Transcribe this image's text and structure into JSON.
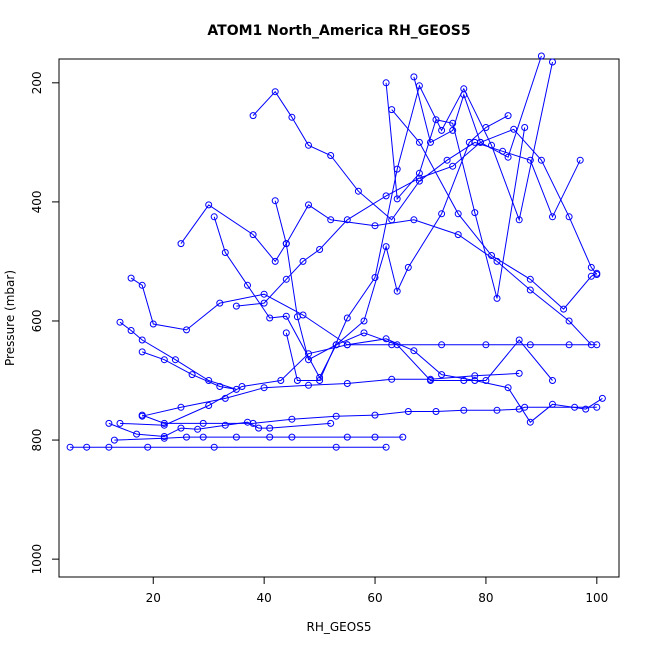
{
  "chart_data": {
    "type": "line",
    "title": "ATOM1 North_America RH_GEOS5",
    "xlabel": "RH_GEOS5",
    "ylabel": "Pressure (mbar)",
    "xlim": [
      3,
      104
    ],
    "ylim": [
      1030,
      160
    ],
    "y_inverted": true,
    "x_ticks": [
      "20",
      "40",
      "60",
      "80",
      "100"
    ],
    "y_ticks": [
      "200",
      "400",
      "600",
      "800",
      "1000"
    ],
    "grid": false,
    "legend": "none",
    "series_color": "#0000ff",
    "marker": "open-circle",
    "series": [
      {
        "x": [
          5,
          8,
          12,
          19,
          31,
          53,
          62
        ],
        "y": [
          812,
          812,
          812,
          812,
          812,
          812,
          812
        ]
      },
      {
        "x": [
          13,
          22,
          26,
          29,
          35,
          41,
          45,
          55,
          60,
          65
        ],
        "y": [
          800,
          797,
          795,
          795,
          795,
          795,
          795,
          795,
          795,
          795
        ]
      },
      {
        "x": [
          12,
          17,
          22,
          25,
          28,
          33,
          37,
          39,
          41,
          52
        ],
        "y": [
          772,
          790,
          794,
          780,
          782,
          775,
          770,
          780,
          780,
          772
        ]
      },
      {
        "x": [
          100,
          96,
          87,
          86,
          82,
          76,
          71,
          66,
          60,
          53,
          45,
          38,
          29,
          22,
          18
        ],
        "y": [
          745,
          745,
          745,
          748,
          750,
          750,
          752,
          752,
          758,
          760,
          765,
          772,
          772,
          772,
          758
        ]
      },
      {
        "x": [
          101,
          98,
          92,
          88,
          84,
          78,
          72,
          67,
          62,
          55,
          48,
          43,
          36,
          30,
          22,
          14
        ],
        "y": [
          730,
          748,
          740,
          770,
          712,
          700,
          690,
          650,
          630,
          640,
          655,
          700,
          710,
          742,
          775,
          772
        ]
      },
      {
        "x": [
          14,
          16,
          18,
          24,
          30,
          35,
          32,
          27,
          22,
          18
        ],
        "y": [
          602,
          616,
          632,
          665,
          700,
          715,
          710,
          690,
          665,
          652
        ]
      },
      {
        "x": [
          16,
          18,
          20,
          26,
          32,
          40,
          47,
          55,
          63,
          72,
          80,
          88,
          95,
          100
        ],
        "y": [
          528,
          540,
          605,
          615,
          570,
          555,
          590,
          640,
          640,
          640,
          640,
          640,
          640,
          640
        ]
      },
      {
        "x": [
          25,
          30,
          38,
          42,
          44,
          48,
          52,
          60,
          67,
          75,
          82,
          88,
          95,
          99
        ],
        "y": [
          470,
          405,
          455,
          500,
          470,
          405,
          430,
          440,
          430,
          455,
          500,
          548,
          600,
          640
        ]
      },
      {
        "x": [
          31,
          33,
          37,
          41,
          44,
          50,
          53,
          58,
          64,
          70,
          76,
          80,
          86,
          92
        ],
        "y": [
          425,
          485,
          540,
          595,
          592,
          695,
          640,
          620,
          640,
          700,
          700,
          700,
          632,
          700
        ]
      },
      {
        "x": [
          35,
          40,
          44,
          47,
          50,
          55,
          62,
          68,
          74,
          79,
          85,
          90,
          95,
          99,
          100
        ],
        "y": [
          575,
          570,
          530,
          500,
          480,
          430,
          390,
          360,
          340,
          300,
          278,
          330,
          425,
          510,
          522
        ]
      },
      {
        "x": [
          38,
          42,
          45,
          48,
          52,
          57,
          63,
          68,
          73,
          78,
          83,
          88,
          92,
          97
        ],
        "y": [
          255,
          215,
          258,
          305,
          322,
          382,
          430,
          365,
          330,
          300,
          315,
          330,
          425,
          330
        ]
      },
      {
        "x": [
          42,
          44,
          46,
          48,
          53,
          58,
          62,
          64,
          66,
          72,
          77,
          80,
          84
        ],
        "y": [
          398,
          470,
          593,
          665,
          640,
          600,
          475,
          550,
          510,
          420,
          300,
          275,
          255
        ]
      },
      {
        "x": [
          44,
          46,
          50,
          55,
          60,
          64,
          68,
          72,
          76,
          81,
          86,
          92
        ],
        "y": [
          620,
          700,
          700,
          595,
          527,
          345,
          205,
          280,
          210,
          305,
          430,
          165
        ]
      },
      {
        "x": [
          18,
          25,
          33,
          40,
          48,
          55,
          63,
          70,
          78,
          86
        ],
        "y": [
          760,
          745,
          730,
          712,
          708,
          705,
          698,
          698,
          692,
          688
        ]
      },
      {
        "x": [
          63,
          68,
          75,
          81,
          88,
          94,
          99,
          100
        ],
        "y": [
          245,
          300,
          420,
          490,
          530,
          580,
          525,
          520
        ]
      },
      {
        "x": [
          67,
          70,
          74,
          76,
          79,
          84,
          90
        ],
        "y": [
          190,
          300,
          280,
          220,
          300,
          325,
          155
        ]
      },
      {
        "x": [
          62,
          64,
          68,
          71,
          74,
          78,
          82,
          87
        ],
        "y": [
          200,
          395,
          352,
          262,
          268,
          418,
          562,
          275
        ]
      }
    ]
  }
}
